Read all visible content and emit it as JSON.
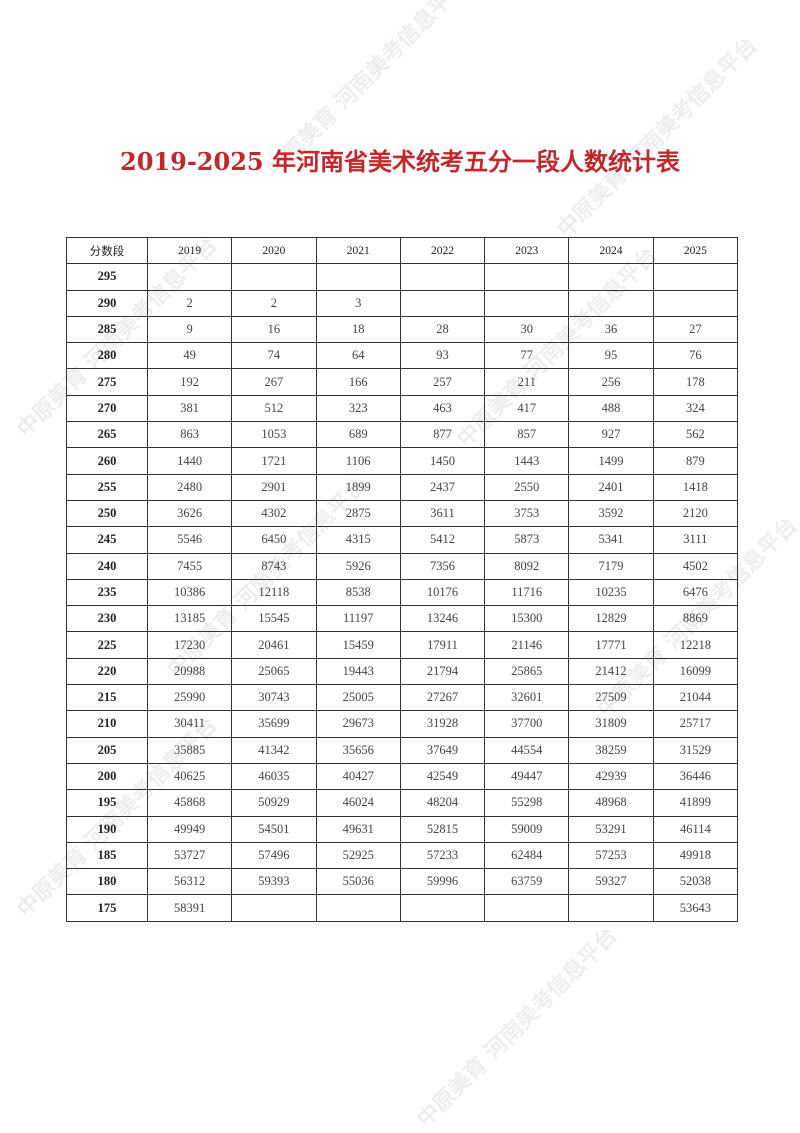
{
  "title": "2019-2025 年河南省美术统考五分一段人数统计表",
  "watermark": "中原美育 河南美考信息平台",
  "table": {
    "headers": [
      "分数段",
      "2019",
      "2020",
      "2021",
      "2022",
      "2023",
      "2024",
      "2025"
    ],
    "rows": [
      [
        "295",
        "",
        "",
        "",
        "",
        "",
        "",
        ""
      ],
      [
        "290",
        "2",
        "2",
        "3",
        "",
        "",
        "",
        ""
      ],
      [
        "285",
        "9",
        "16",
        "18",
        "28",
        "30",
        "36",
        "27"
      ],
      [
        "280",
        "49",
        "74",
        "64",
        "93",
        "77",
        "95",
        "76"
      ],
      [
        "275",
        "192",
        "267",
        "166",
        "257",
        "211",
        "256",
        "178"
      ],
      [
        "270",
        "381",
        "512",
        "323",
        "463",
        "417",
        "488",
        "324"
      ],
      [
        "265",
        "863",
        "1053",
        "689",
        "877",
        "857",
        "927",
        "562"
      ],
      [
        "260",
        "1440",
        "1721",
        "1106",
        "1450",
        "1443",
        "1499",
        "879"
      ],
      [
        "255",
        "2480",
        "2901",
        "1899",
        "2437",
        "2550",
        "2401",
        "1418"
      ],
      [
        "250",
        "3626",
        "4302",
        "2875",
        "3611",
        "3753",
        "3592",
        "2120"
      ],
      [
        "245",
        "5546",
        "6450",
        "4315",
        "5412",
        "5873",
        "5341",
        "3111"
      ],
      [
        "240",
        "7455",
        "8743",
        "5926",
        "7356",
        "8092",
        "7179",
        "4502"
      ],
      [
        "235",
        "10386",
        "12118",
        "8538",
        "10176",
        "11716",
        "10235",
        "6476"
      ],
      [
        "230",
        "13185",
        "15545",
        "11197",
        "13246",
        "15300",
        "12829",
        "8869"
      ],
      [
        "225",
        "17230",
        "20461",
        "15459",
        "17911",
        "21146",
        "17771",
        "12218"
      ],
      [
        "220",
        "20988",
        "25065",
        "19443",
        "21794",
        "25865",
        "21412",
        "16099"
      ],
      [
        "215",
        "25990",
        "30743",
        "25005",
        "27267",
        "32601",
        "27509",
        "21044"
      ],
      [
        "210",
        "30411",
        "35699",
        "29673",
        "31928",
        "37700",
        "31809",
        "25717"
      ],
      [
        "205",
        "35885",
        "41342",
        "35656",
        "37649",
        "44554",
        "38259",
        "31529"
      ],
      [
        "200",
        "40625",
        "46035",
        "40427",
        "42549",
        "49447",
        "42939",
        "36446"
      ],
      [
        "195",
        "45868",
        "50929",
        "46024",
        "48204",
        "55298",
        "48968",
        "41899"
      ],
      [
        "190",
        "49949",
        "54501",
        "49631",
        "52815",
        "59009",
        "53291",
        "46114"
      ],
      [
        "185",
        "53727",
        "57496",
        "52925",
        "57233",
        "62484",
        "57253",
        "49918"
      ],
      [
        "180",
        "56312",
        "59393",
        "55036",
        "59996",
        "63759",
        "59327",
        "52038"
      ],
      [
        "175",
        "58391",
        "",
        "",
        "",
        "",
        "",
        "53643"
      ]
    ]
  },
  "colors": {
    "title": "#c0282d",
    "border": "#333333"
  }
}
